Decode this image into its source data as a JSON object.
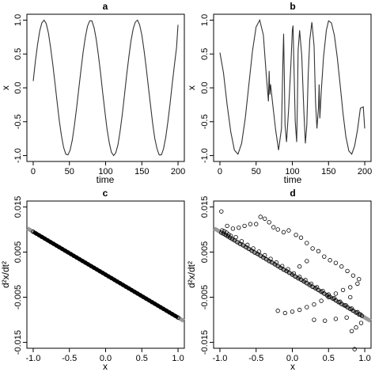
{
  "chart_data": [
    {
      "id": "a",
      "type": "line",
      "title": "a",
      "xlabel": "time",
      "ylabel": "x",
      "xlim": [
        0,
        200
      ],
      "ylim": [
        -1,
        1
      ],
      "xticks": [
        0,
        50,
        100,
        150,
        200
      ],
      "yticks": [
        -1.0,
        -0.5,
        0.0,
        0.5,
        1.0
      ],
      "ytick_labels": [
        "-1.0",
        "-0.5",
        "0.0",
        "0.5",
        "1.0"
      ],
      "series": [
        {
          "values_x": [
            0.0,
            3.0,
            6.0,
            9.0,
            12.0,
            15.0,
            18.0,
            21.0,
            24.0,
            27.0,
            30.0,
            33.0,
            36.0,
            39.0,
            42.0,
            45.0,
            48.0,
            51.0,
            54.0,
            57.0,
            60.0,
            63.0,
            66.0,
            69.0,
            72.0,
            75.0,
            78.0,
            81.0,
            84.0,
            87.0,
            90.0,
            93.0,
            96.0,
            99.0,
            102.0,
            105.0,
            108.0,
            111.0,
            114.0,
            117.0,
            120.0,
            123.0,
            126.0,
            129.0,
            132.0,
            135.0,
            138.0,
            141.0,
            144.0,
            147.0,
            150.0,
            153.0,
            156.0,
            159.0,
            162.0,
            165.0,
            168.0,
            171.0,
            174.0,
            177.0,
            180.0,
            183.0,
            186.0,
            189.0,
            192.0,
            195.0,
            198.0,
            200.0
          ],
          "values_y": [
            0.1,
            0.39,
            0.64,
            0.84,
            0.96,
            1.0,
            0.95,
            0.81,
            0.6,
            0.35,
            0.08,
            -0.21,
            -0.48,
            -0.71,
            -0.88,
            -0.98,
            -0.99,
            -0.92,
            -0.77,
            -0.55,
            -0.29,
            -0.01,
            0.27,
            0.53,
            0.75,
            0.91,
            0.99,
            0.99,
            0.89,
            0.72,
            0.49,
            0.22,
            -0.07,
            -0.35,
            -0.61,
            -0.81,
            -0.95,
            -1.0,
            -0.96,
            -0.84,
            -0.64,
            -0.39,
            -0.11,
            0.18,
            0.45,
            0.69,
            0.87,
            0.97,
            1.0,
            0.93,
            0.78,
            0.56,
            0.3,
            0.02,
            -0.26,
            -0.53,
            -0.75,
            -0.9,
            -0.99,
            -0.99,
            -0.9,
            -0.73,
            -0.5,
            -0.23,
            0.06,
            0.34,
            0.6,
            0.93
          ]
        }
      ]
    },
    {
      "id": "b",
      "type": "line",
      "title": "b",
      "xlabel": "time",
      "ylabel": "x",
      "xlim": [
        0,
        200
      ],
      "ylim": [
        -1,
        1
      ],
      "xticks": [
        0,
        50,
        100,
        150,
        200
      ],
      "yticks": [
        -1.0,
        -0.5,
        0.0,
        0.5,
        1.0
      ],
      "ytick_labels": [
        "-1.0",
        "-0.5",
        "0.0",
        "0.5",
        "1.0"
      ],
      "series": [
        {
          "values_x": [
            0,
            5,
            10,
            15,
            20,
            25,
            30,
            35,
            40,
            45,
            50,
            55,
            60,
            64,
            67,
            68,
            69,
            70,
            73,
            77,
            81,
            85,
            87,
            88,
            89,
            90,
            92,
            95,
            98,
            100,
            101,
            102,
            104,
            106,
            107,
            108,
            110,
            113,
            116,
            118,
            120,
            122,
            124,
            127,
            130,
            132,
            134,
            136,
            137,
            138,
            140,
            143,
            147,
            150,
            154,
            158,
            162,
            166,
            170,
            174,
            178,
            182,
            186,
            190,
            194,
            198,
            200
          ],
          "values_y": [
            0.52,
            0.22,
            -0.25,
            -0.65,
            -0.92,
            -0.98,
            -0.82,
            -0.45,
            0.05,
            0.55,
            0.9,
            1.0,
            0.78,
            0.2,
            -0.2,
            0.25,
            -0.1,
            0.05,
            -0.25,
            -0.62,
            -0.92,
            -0.6,
            0.4,
            0.8,
            0.15,
            -0.55,
            -0.8,
            -0.3,
            0.35,
            0.85,
            0.92,
            0.45,
            -0.5,
            -0.8,
            -0.25,
            0.55,
            0.85,
            0.48,
            -0.35,
            -0.82,
            -0.55,
            0.2,
            0.7,
            0.97,
            0.62,
            -0.2,
            -0.6,
            -0.3,
            0.05,
            -0.45,
            -0.05,
            0.45,
            0.85,
            0.99,
            0.96,
            0.78,
            0.45,
            0.05,
            -0.38,
            -0.72,
            -0.93,
            -0.98,
            -0.86,
            -0.62,
            -0.3,
            -0.28,
            -0.6
          ]
        }
      ]
    },
    {
      "id": "c",
      "type": "scatter",
      "title": "c",
      "xlabel": "x",
      "ylabel": "d²x/dt²",
      "xlim": [
        -1.0,
        1.0
      ],
      "ylim": [
        -0.015,
        0.015
      ],
      "xticks": [
        -1.0,
        -0.5,
        0.0,
        0.5,
        1.0
      ],
      "xtick_labels": [
        "-1.0",
        "-0.5",
        "0.0",
        "0.5",
        "1.0"
      ],
      "yticks": [
        -0.015,
        -0.005,
        0.005,
        0.015
      ],
      "ytick_labels": [
        "-0.015",
        "-0.005",
        "0.005",
        "0.015"
      ],
      "fit_line": {
        "slope": -0.0095,
        "intercept": 0.0
      },
      "series": [
        {
          "values_x": [
            -1.0,
            -0.96,
            -0.92,
            -0.88,
            -0.84,
            -0.8,
            -0.76,
            -0.72,
            -0.68,
            -0.64,
            -0.6,
            -0.56,
            -0.52,
            -0.48,
            -0.44,
            -0.4,
            -0.36,
            -0.32,
            -0.28,
            -0.24,
            -0.2,
            -0.16,
            -0.12,
            -0.08,
            -0.04,
            0.0,
            0.04,
            0.08,
            0.12,
            0.16,
            0.2,
            0.24,
            0.28,
            0.32,
            0.36,
            0.4,
            0.44,
            0.48,
            0.52,
            0.56,
            0.6,
            0.64,
            0.68,
            0.72,
            0.76,
            0.8,
            0.84,
            0.88,
            0.92,
            0.96,
            1.0
          ],
          "values_y": [
            0.0095,
            0.00912,
            0.00874,
            0.00836,
            0.00798,
            0.0076,
            0.00722,
            0.00684,
            0.00646,
            0.00608,
            0.0057,
            0.00532,
            0.00494,
            0.00456,
            0.00418,
            0.0038,
            0.00342,
            0.00304,
            0.00266,
            0.00228,
            0.0019,
            0.00152,
            0.00114,
            0.00076,
            0.00038,
            0.0,
            -0.00038,
            -0.00076,
            -0.00114,
            -0.00152,
            -0.0019,
            -0.00228,
            -0.00266,
            -0.00304,
            -0.00342,
            -0.0038,
            -0.00418,
            -0.00456,
            -0.00494,
            -0.00532,
            -0.0057,
            -0.00608,
            -0.00646,
            -0.00684,
            -0.00722,
            -0.0076,
            -0.00798,
            -0.00836,
            -0.00874,
            -0.00912,
            -0.0095
          ]
        }
      ]
    },
    {
      "id": "d",
      "type": "scatter",
      "title": "d",
      "xlabel": "x",
      "ylabel": "d²x/dt²",
      "xlim": [
        -1.0,
        1.0
      ],
      "ylim": [
        -0.015,
        0.015
      ],
      "xticks": [
        -1.0,
        -0.5,
        0.0,
        0.5,
        1.0
      ],
      "xtick_labels": [
        "-1.0",
        "-0.5",
        "0.0",
        "0.5",
        "1.0"
      ],
      "yticks": [
        -0.015,
        -0.005,
        0.005,
        0.015
      ],
      "ytick_labels": [
        "-0.015",
        "-0.005",
        "0.005",
        "0.015"
      ],
      "fit_line": {
        "slope": -0.0095,
        "intercept": 0.0
      },
      "series": [
        {
          "values_x": [
            -0.98,
            -0.95,
            -0.92,
            -0.89,
            -0.86,
            -0.83,
            -0.8,
            -0.76,
            -0.72,
            -0.68,
            -0.64,
            -0.6,
            -0.56,
            -0.52,
            -0.48,
            -0.44,
            -0.4,
            -0.36,
            -0.32,
            -0.28,
            -0.24,
            -0.2,
            -0.16,
            -0.12,
            -0.08,
            -0.04,
            0.0,
            0.04,
            0.08,
            0.12,
            0.16,
            0.2,
            0.24,
            0.28,
            0.32,
            0.36,
            0.4,
            0.44,
            0.48,
            0.52,
            0.56,
            0.6,
            0.64,
            0.68,
            0.72,
            0.76,
            0.8,
            0.84,
            0.88,
            0.92,
            0.96,
            -0.97,
            -0.94,
            -0.91,
            -0.88,
            -0.85,
            -0.78,
            -0.7,
            -0.62,
            -0.54,
            -0.46,
            -0.38,
            -0.3,
            -0.22,
            -0.14,
            -0.06,
            0.02,
            0.1,
            0.18,
            0.26,
            0.34,
            0.42,
            0.5,
            0.58,
            0.66,
            0.74,
            0.82,
            0.9,
            0.94,
            -0.98,
            -0.9,
            -0.82,
            -0.74,
            -0.66,
            -0.58,
            -0.5,
            -0.44,
            -0.38,
            -0.32,
            -0.26,
            -0.2,
            -0.12,
            -0.05,
            0.05,
            0.12,
            0.2,
            0.28,
            0.36,
            0.44,
            0.52,
            0.6,
            0.68,
            0.76,
            0.84,
            0.92,
            -0.2,
            -0.1,
            0.0,
            0.1,
            0.2,
            0.3,
            0.4,
            0.5,
            0.6,
            0.7,
            0.8,
            0.9,
            0.3,
            0.45,
            0.6,
            0.75,
            0.82,
            0.88,
            0.95,
            0.86,
            0.8,
            0.1,
            0.2
          ],
          "values_y": [
            0.0093,
            0.0091,
            0.0088,
            0.0085,
            0.0082,
            0.0079,
            0.0076,
            0.0072,
            0.0068,
            0.0065,
            0.0061,
            0.0057,
            0.0053,
            0.0049,
            0.0046,
            0.0042,
            0.0038,
            0.0034,
            0.003,
            0.0027,
            0.0023,
            0.0019,
            0.0015,
            0.0011,
            0.0008,
            0.0004,
            0.0,
            -0.0004,
            -0.0008,
            -0.0011,
            -0.0015,
            -0.0019,
            -0.0023,
            -0.0027,
            -0.003,
            -0.0034,
            -0.0038,
            -0.0042,
            -0.0046,
            -0.0049,
            -0.0053,
            -0.0057,
            -0.0061,
            -0.0065,
            -0.0068,
            -0.0072,
            -0.0076,
            -0.008,
            -0.0084,
            -0.0088,
            -0.0091,
            0.0098,
            0.0096,
            0.0093,
            0.0089,
            0.0086,
            0.0083,
            0.0074,
            0.0066,
            0.0058,
            0.0051,
            0.0043,
            0.0035,
            0.0027,
            0.0019,
            0.0012,
            0.0003,
            -0.0005,
            -0.0012,
            -0.002,
            -0.0028,
            -0.0036,
            -0.0044,
            -0.0052,
            -0.006,
            -0.0068,
            -0.0075,
            -0.0083,
            -0.0088,
            0.014,
            0.0108,
            0.0102,
            0.0104,
            0.0108,
            0.0112,
            0.0112,
            0.0128,
            0.0124,
            0.0116,
            0.0105,
            0.01,
            0.0094,
            0.0098,
            0.0088,
            0.0082,
            0.007,
            0.0058,
            0.0052,
            0.004,
            0.0032,
            0.0026,
            0.0018,
            0.0008,
            -0.0002,
            -0.001,
            -0.008,
            -0.0085,
            -0.0082,
            -0.0078,
            -0.0072,
            -0.0066,
            -0.0058,
            -0.005,
            -0.0042,
            -0.0034,
            -0.0028,
            -0.002,
            -0.01,
            -0.0102,
            -0.0098,
            -0.0095,
            -0.0125,
            -0.0117,
            -0.0107,
            -0.0165,
            -0.005,
            0.0018,
            0.003
          ]
        }
      ]
    }
  ]
}
